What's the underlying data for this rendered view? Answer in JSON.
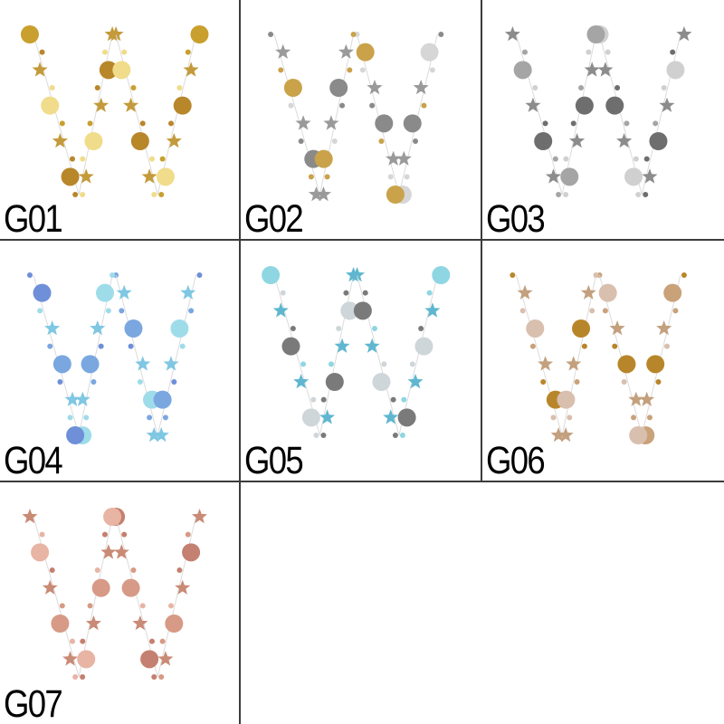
{
  "swatches": [
    {
      "code": "G01",
      "colors": {
        "a": "#c9a02e",
        "b": "#f0dc8a",
        "c": "#b8872a",
        "star": "#c49a3a"
      }
    },
    {
      "code": "G02",
      "colors": {
        "a": "#c9a24a",
        "b": "#8a8a8a",
        "c": "#d6d6d6",
        "star": "#9a9a9a"
      }
    },
    {
      "code": "G03",
      "colors": {
        "a": "#6e6e6e",
        "b": "#d0d0d0",
        "c": "#a5a5a5",
        "star": "#8c8c8c"
      }
    },
    {
      "code": "G04",
      "colors": {
        "a": "#9fdcea",
        "b": "#6f8fd8",
        "c": "#7aa7e0",
        "star": "#7fc7e3"
      }
    },
    {
      "code": "G05",
      "colors": {
        "a": "#8fd6e3",
        "b": "#7a7a7a",
        "c": "#cfd6da",
        "star": "#5fb7cf"
      }
    },
    {
      "code": "G06",
      "colors": {
        "a": "#d9bfae",
        "b": "#b8862a",
        "c": "#c9a27a",
        "star": "#c3a07e"
      }
    },
    {
      "code": "G07",
      "colors": {
        "a": "#d79a86",
        "b": "#c48070",
        "c": "#e8b4a4",
        "star": "#c98a76"
      }
    }
  ]
}
